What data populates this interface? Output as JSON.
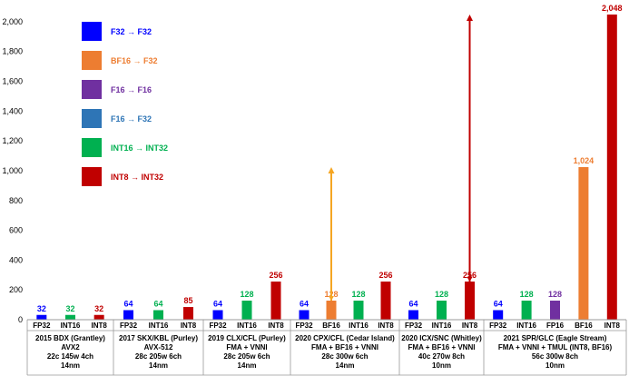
{
  "chart_data": {
    "type": "bar",
    "ylim": [
      0,
      2048
    ],
    "y_ticks": [
      0,
      200,
      400,
      600,
      800,
      1000,
      1200,
      1400,
      1600,
      1800,
      2000
    ],
    "y_tick_labels": [
      "0",
      "200",
      "400",
      "600",
      "800",
      "1,000",
      "1,200",
      "1,400",
      "1,600",
      "1,800",
      "2,000"
    ],
    "series_colors": {
      "F32": "#0000ff",
      "BF16": "#ed7d31",
      "F16": "#7030a0",
      "FP16": "#7030a0",
      "INT16": "#00b050",
      "INT8": "#c00000"
    },
    "legend": [
      {
        "label": "F32 → F32",
        "color": "#0000ff",
        "text_color": "#0000ff"
      },
      {
        "label": "BF16 → F32",
        "color": "#ed7d31",
        "text_color": "#ed7d31"
      },
      {
        "label": "F16 → F16",
        "color": "#7030a0",
        "text_color": "#7030a0"
      },
      {
        "label": "F16 → F32",
        "color": "#2e75b6",
        "text_color": "#2e75b6"
      },
      {
        "label": "INT16 → INT32",
        "color": "#00b050",
        "text_color": "#00b050"
      },
      {
        "label": "INT8 → INT32",
        "color": "#c00000",
        "text_color": "#c00000"
      }
    ],
    "groups": [
      {
        "lines": [
          "2015 BDX (Grantley)",
          "AVX2",
          "22c  145w 4ch",
          "14nm"
        ],
        "bars": [
          {
            "category": "FP32",
            "value": 32,
            "label": "32",
            "series": "F32"
          },
          {
            "category": "INT16",
            "value": 32,
            "label": "32",
            "series": "INT16"
          },
          {
            "category": "INT8",
            "value": 32,
            "label": "32",
            "series": "INT8"
          }
        ]
      },
      {
        "lines": [
          "2017 SKX/KBL (Purley)",
          "AVX-512",
          "28c  205w 6ch",
          "14nm"
        ],
        "bars": [
          {
            "category": "FP32",
            "value": 64,
            "label": "64",
            "series": "F32"
          },
          {
            "category": "INT16",
            "value": 64,
            "label": "64",
            "series": "INT16"
          },
          {
            "category": "INT8",
            "value": 85,
            "label": "85",
            "series": "INT8"
          }
        ]
      },
      {
        "lines": [
          "2019 CLX/CFL (Purley)",
          "FMA + VNNI",
          "28c  205w 6ch",
          "14nm"
        ],
        "bars": [
          {
            "category": "FP32",
            "value": 64,
            "label": "64",
            "series": "F32"
          },
          {
            "category": "INT16",
            "value": 128,
            "label": "128",
            "series": "INT16"
          },
          {
            "category": "INT8",
            "value": 256,
            "label": "256",
            "series": "INT8"
          }
        ]
      },
      {
        "lines": [
          "2020 CPX/CFL (Cedar Island)",
          "FMA + BF16 + VNNI",
          "28c  300w 6ch",
          "14nm"
        ],
        "bars": [
          {
            "category": "FP32",
            "value": 64,
            "label": "64",
            "series": "F32"
          },
          {
            "category": "BF16",
            "value": 128,
            "label": "128",
            "series": "BF16"
          },
          {
            "category": "INT16",
            "value": 128,
            "label": "128",
            "series": "INT16"
          },
          {
            "category": "INT8",
            "value": 256,
            "label": "256",
            "series": "INT8"
          }
        ],
        "arrow": {
          "bar_index": 1,
          "from": 128,
          "to": 1024,
          "color": "#f5a623"
        }
      },
      {
        "lines": [
          "2020 ICX/SNC (Whitley)",
          "FMA + BF16 + VNNI",
          "40c  270w 8ch",
          "10nm"
        ],
        "bars": [
          {
            "category": "FP32",
            "value": 64,
            "label": "64",
            "series": "F32"
          },
          {
            "category": "INT16",
            "value": 128,
            "label": "128",
            "series": "INT16"
          },
          {
            "category": "INT8",
            "value": 256,
            "label": "256",
            "series": "INT8"
          }
        ],
        "arrow": {
          "bar_index": 2,
          "from": 256,
          "to": 2048,
          "color": "#c00000"
        }
      },
      {
        "lines": [
          "2021 SPR/GLC (Eagle Stream)",
          "FMA + VNNI + TMUL (INT8, BF16)",
          "56c  300w 8ch",
          "10nm"
        ],
        "bars": [
          {
            "category": "FP32",
            "value": 64,
            "label": "64",
            "series": "F32"
          },
          {
            "category": "INT16",
            "value": 128,
            "label": "128",
            "series": "INT16"
          },
          {
            "category": "FP16",
            "value": 128,
            "label": "128",
            "series": "FP16"
          },
          {
            "category": "BF16",
            "value": 1024,
            "label": "1,024",
            "series": "BF16"
          },
          {
            "category": "INT8",
            "value": 2048,
            "label": "2,048",
            "series": "INT8"
          }
        ]
      }
    ]
  }
}
